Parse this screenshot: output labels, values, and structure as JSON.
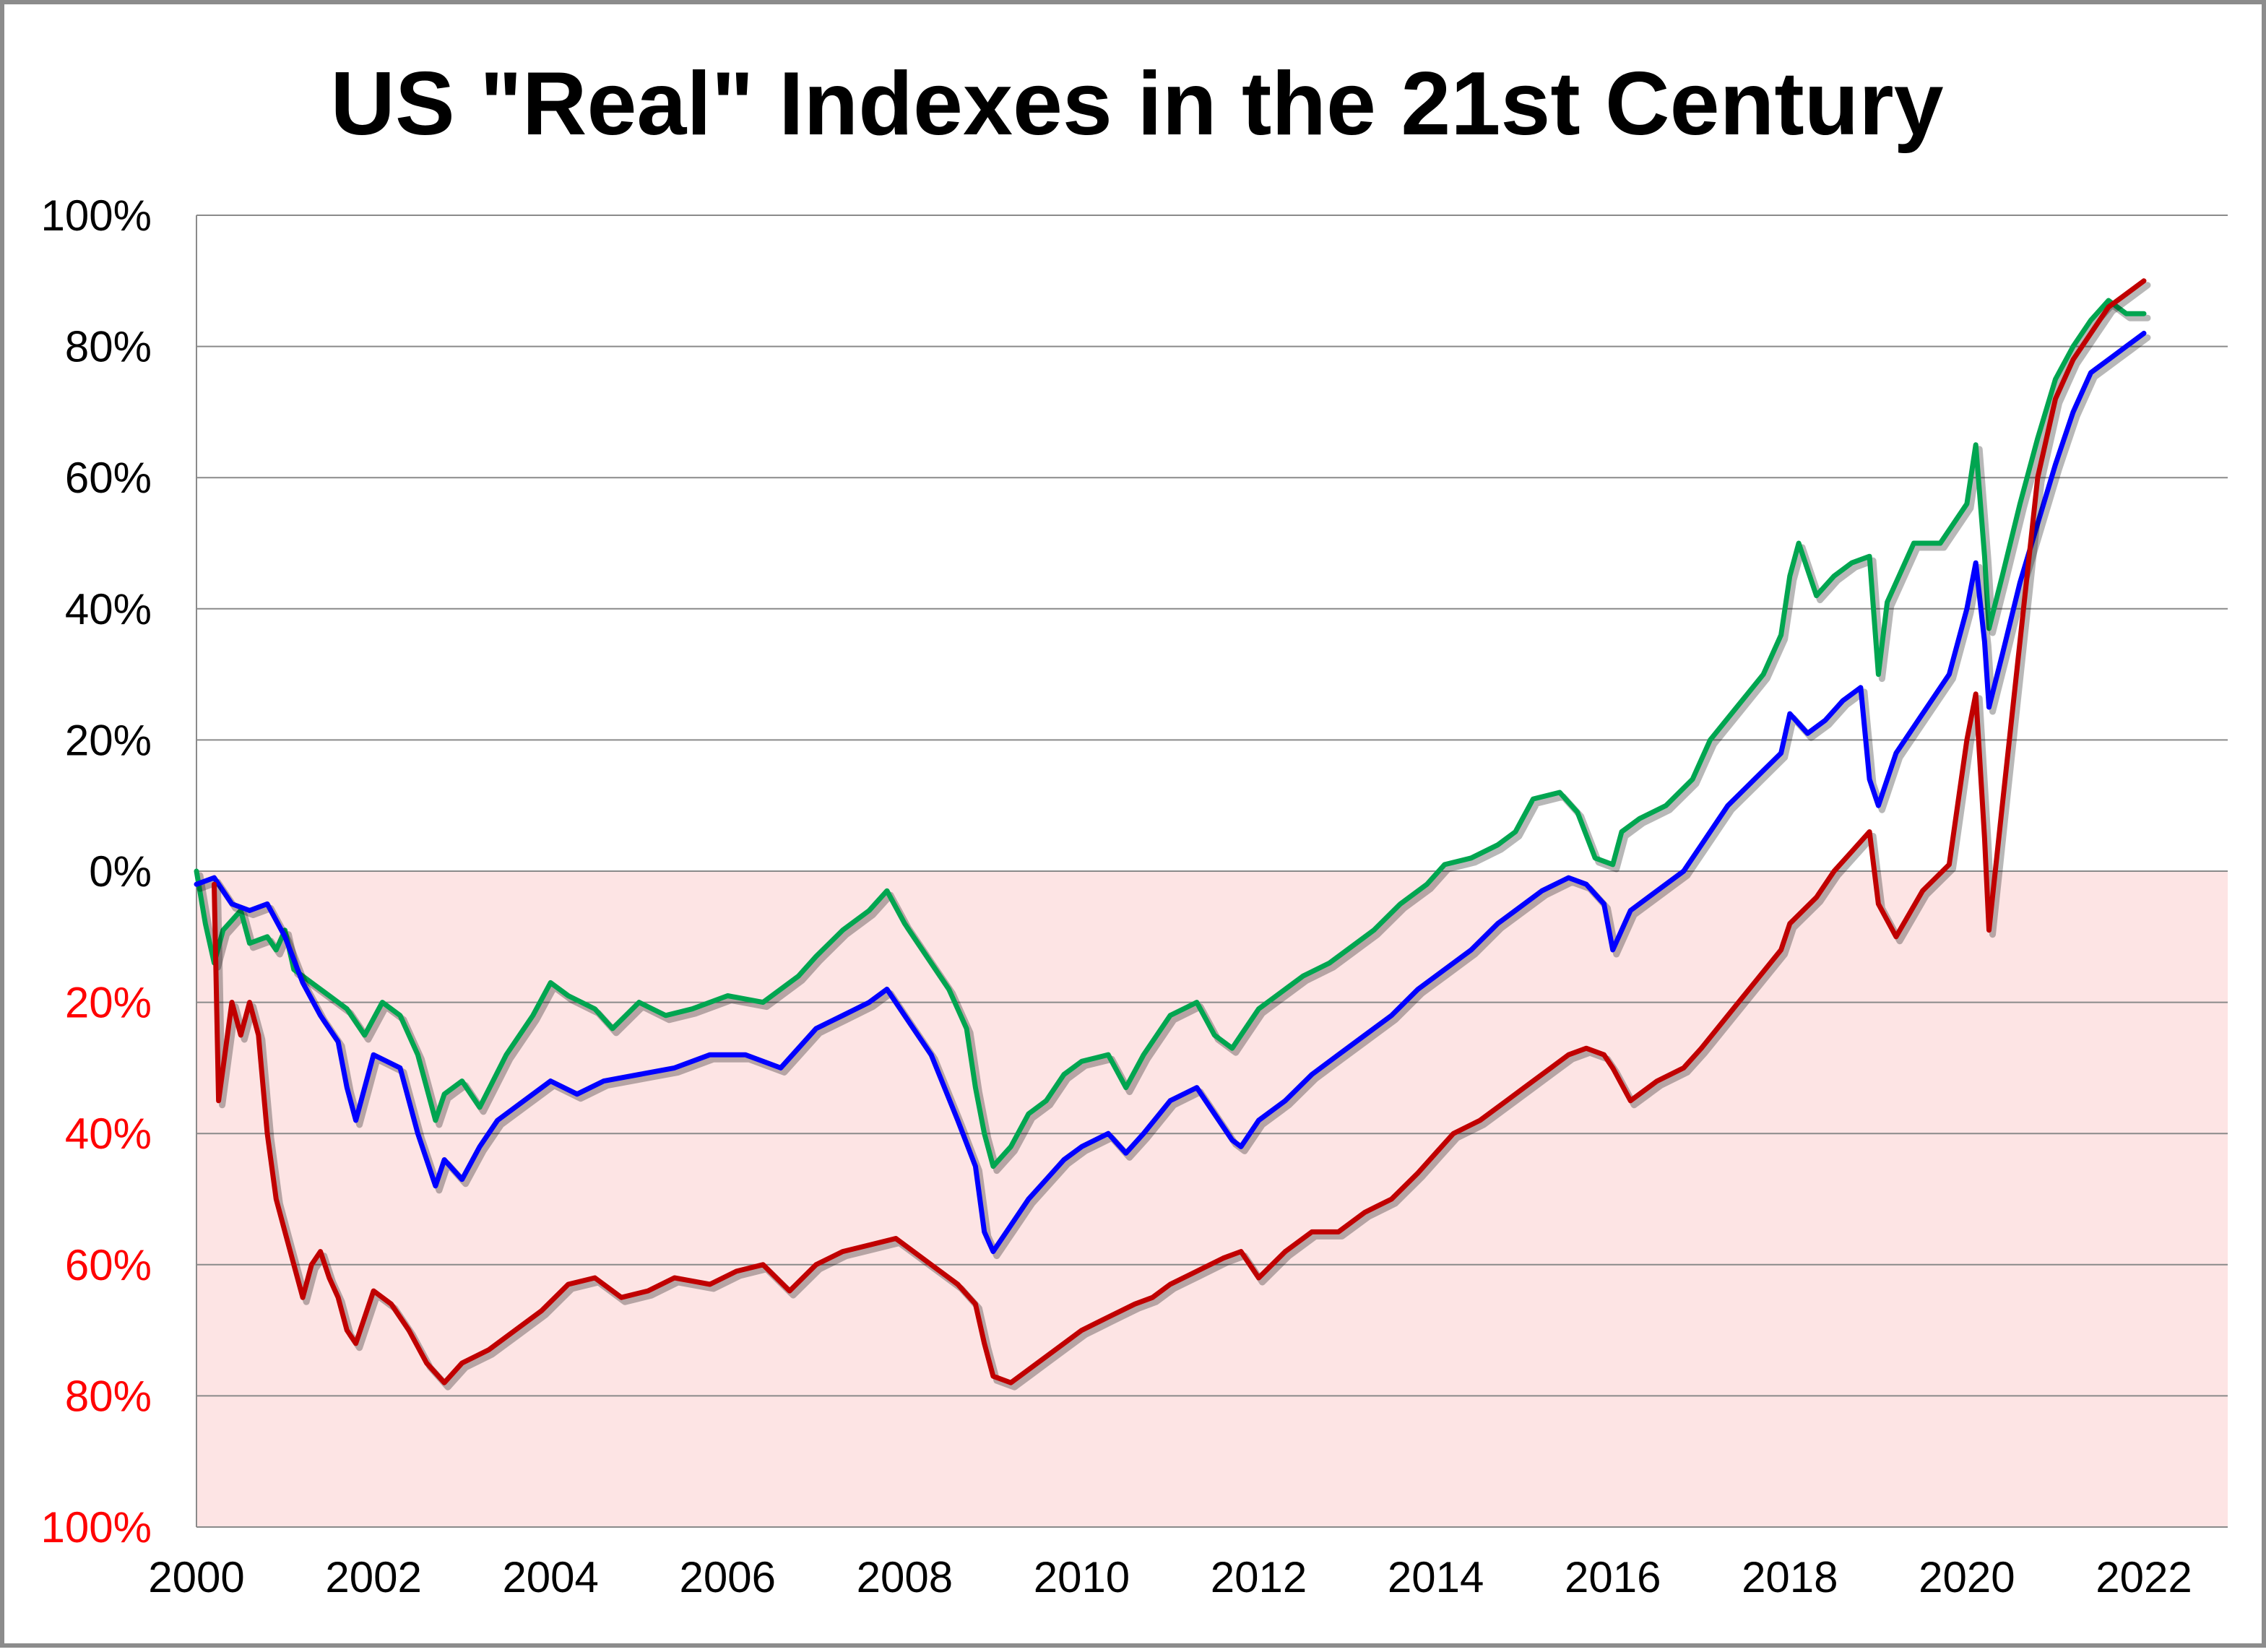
{
  "chart_data": {
    "type": "line",
    "title": "US \"Real\" Indexes in the 21st Century",
    "xlabel": "",
    "ylabel": "",
    "xlim": [
      2000,
      2023
    ],
    "ylim": [
      -100,
      100
    ],
    "grid": true,
    "legend": "none",
    "x_ticks": [
      "2000",
      "2002",
      "2004",
      "2006",
      "2008",
      "2010",
      "2012",
      "2014",
      "2016",
      "2018",
      "2020",
      "2022"
    ],
    "y_ticks": [
      {
        "value": 100,
        "label": "100%",
        "color": "#000000"
      },
      {
        "value": 80,
        "label": "80%",
        "color": "#000000"
      },
      {
        "value": 60,
        "label": "60%",
        "color": "#000000"
      },
      {
        "value": 40,
        "label": "40%",
        "color": "#000000"
      },
      {
        "value": 20,
        "label": "20%",
        "color": "#000000"
      },
      {
        "value": 0,
        "label": "0%",
        "color": "#000000"
      },
      {
        "value": -20,
        "label": "20%",
        "color": "#ff0000"
      },
      {
        "value": -40,
        "label": "40%",
        "color": "#ff0000"
      },
      {
        "value": -60,
        "label": "60%",
        "color": "#ff0000"
      },
      {
        "value": -80,
        "label": "80%",
        "color": "#ff0000"
      },
      {
        "value": -100,
        "label": "100%",
        "color": "#ff0000"
      }
    ],
    "negative_region_color": "#fde4e4",
    "series": [
      {
        "color": "#00a550",
        "x": [
          2000.0,
          2000.1,
          2000.2,
          2000.3,
          2000.5,
          2000.6,
          2000.8,
          2000.9,
          2001.0,
          2001.1,
          2001.3,
          2001.5,
          2001.7,
          2001.9,
          2002.1,
          2002.3,
          2002.5,
          2002.7,
          2002.8,
          2003.0,
          2003.2,
          2003.5,
          2003.8,
          2004.0,
          2004.2,
          2004.5,
          2004.7,
          2005.0,
          2005.3,
          2005.6,
          2006.0,
          2006.4,
          2006.8,
          2007.0,
          2007.3,
          2007.6,
          2007.8,
          2008.0,
          2008.3,
          2008.5,
          2008.7,
          2008.8,
          2008.9,
          2009.0,
          2009.2,
          2009.4,
          2009.6,
          2009.8,
          2010.0,
          2010.3,
          2010.5,
          2010.7,
          2011.0,
          2011.3,
          2011.5,
          2011.7,
          2011.8,
          2012.0,
          2012.3,
          2012.5,
          2012.8,
          2013.0,
          2013.3,
          2013.6,
          2013.9,
          2014.1,
          2014.4,
          2014.7,
          2014.9,
          2015.1,
          2015.4,
          2015.6,
          2015.8,
          2016.0,
          2016.1,
          2016.3,
          2016.6,
          2016.9,
          2017.1,
          2017.4,
          2017.7,
          2017.9,
          2018.0,
          2018.1,
          2018.3,
          2018.5,
          2018.7,
          2018.9,
          2019.0,
          2019.1,
          2019.4,
          2019.7,
          2020.0,
          2020.1,
          2020.2,
          2020.25,
          2020.4,
          2020.6,
          2020.8,
          2021.0,
          2021.2,
          2021.4,
          2021.6,
          2021.8,
          2022.0
        ],
        "y": [
          0,
          -8,
          -14,
          -9,
          -6,
          -11,
          -10,
          -12,
          -9,
          -15,
          -17,
          -19,
          -21,
          -25,
          -20,
          -22,
          -28,
          -38,
          -34,
          -32,
          -36,
          -28,
          -22,
          -17,
          -19,
          -21,
          -24,
          -20,
          -22,
          -21,
          -19,
          -20,
          -16,
          -13,
          -9,
          -6,
          -3,
          -8,
          -14,
          -18,
          -24,
          -33,
          -40,
          -45,
          -42,
          -37,
          -35,
          -31,
          -29,
          -28,
          -33,
          -28,
          -22,
          -20,
          -25,
          -27,
          -25,
          -21,
          -18,
          -16,
          -14,
          -12,
          -9,
          -5,
          -2,
          1,
          2,
          4,
          6,
          11,
          12,
          9,
          2,
          1,
          6,
          8,
          10,
          14,
          20,
          25,
          30,
          36,
          45,
          50,
          42,
          45,
          47,
          48,
          30,
          41,
          50,
          50,
          56,
          65,
          48,
          37,
          45,
          56,
          66,
          75,
          80,
          84,
          87,
          85,
          85
        ]
      },
      {
        "color": "#0000ff",
        "x": [
          2000.0,
          2000.2,
          2000.4,
          2000.6,
          2000.8,
          2001.0,
          2001.2,
          2001.4,
          2001.6,
          2001.7,
          2001.8,
          2002.0,
          2002.3,
          2002.5,
          2002.7,
          2002.8,
          2003.0,
          2003.2,
          2003.4,
          2003.7,
          2004.0,
          2004.3,
          2004.6,
          2005.0,
          2005.4,
          2005.8,
          2006.2,
          2006.6,
          2007.0,
          2007.3,
          2007.6,
          2007.8,
          2008.0,
          2008.3,
          2008.6,
          2008.8,
          2008.9,
          2009.0,
          2009.2,
          2009.4,
          2009.6,
          2009.8,
          2010.0,
          2010.3,
          2010.5,
          2010.7,
          2011.0,
          2011.3,
          2011.5,
          2011.7,
          2011.8,
          2012.0,
          2012.3,
          2012.6,
          2012.9,
          2013.2,
          2013.5,
          2013.8,
          2014.1,
          2014.4,
          2014.7,
          2014.9,
          2015.2,
          2015.5,
          2015.7,
          2015.9,
          2016.0,
          2016.2,
          2016.5,
          2016.8,
          2017.0,
          2017.3,
          2017.6,
          2017.9,
          2018.0,
          2018.2,
          2018.4,
          2018.6,
          2018.8,
          2018.9,
          2019.0,
          2019.2,
          2019.5,
          2019.8,
          2020.0,
          2020.1,
          2020.2,
          2020.25,
          2020.4,
          2020.6,
          2020.8,
          2021.0,
          2021.2,
          2021.4,
          2021.6,
          2021.8,
          2022.0
        ],
        "y": [
          -2,
          -1,
          -5,
          -6,
          -5,
          -10,
          -17,
          -22,
          -26,
          -33,
          -38,
          -28,
          -30,
          -40,
          -48,
          -44,
          -47,
          -42,
          -38,
          -35,
          -32,
          -34,
          -32,
          -31,
          -30,
          -28,
          -28,
          -30,
          -24,
          -22,
          -20,
          -18,
          -22,
          -28,
          -38,
          -45,
          -55,
          -58,
          -54,
          -50,
          -47,
          -44,
          -42,
          -40,
          -43,
          -40,
          -35,
          -33,
          -37,
          -41,
          -42,
          -38,
          -35,
          -31,
          -28,
          -25,
          -22,
          -18,
          -15,
          -12,
          -8,
          -6,
          -3,
          -1,
          -2,
          -5,
          -12,
          -6,
          -3,
          0,
          4,
          10,
          14,
          18,
          24,
          21,
          23,
          26,
          28,
          14,
          10,
          18,
          24,
          30,
          40,
          47,
          35,
          25,
          33,
          44,
          53,
          62,
          70,
          76,
          78,
          80,
          82
        ]
      },
      {
        "color": "#c00000",
        "x": [
          2000.2,
          2000.25,
          2000.3,
          2000.35,
          2000.4,
          2000.5,
          2000.6,
          2000.7,
          2000.8,
          2000.9,
          2001.0,
          2001.1,
          2001.2,
          2001.3,
          2001.4,
          2001.5,
          2001.6,
          2001.7,
          2001.8,
          2002.0,
          2002.2,
          2002.4,
          2002.6,
          2002.8,
          2003.0,
          2003.3,
          2003.6,
          2003.9,
          2004.2,
          2004.5,
          2004.8,
          2005.1,
          2005.4,
          2005.8,
          2006.1,
          2006.4,
          2006.7,
          2007.0,
          2007.3,
          2007.6,
          2007.9,
          2008.0,
          2008.3,
          2008.6,
          2008.8,
          2008.9,
          2009.0,
          2009.2,
          2009.4,
          2009.6,
          2009.8,
          2010.0,
          2010.3,
          2010.6,
          2010.8,
          2011.0,
          2011.3,
          2011.6,
          2011.8,
          2012.0,
          2012.3,
          2012.6,
          2012.9,
          2013.2,
          2013.5,
          2013.8,
          2014.0,
          2014.2,
          2014.5,
          2014.8,
          2015.0,
          2015.3,
          2015.5,
          2015.7,
          2015.9,
          2016.0,
          2016.2,
          2016.5,
          2016.8,
          2017.0,
          2017.3,
          2017.6,
          2017.9,
          2018.0,
          2018.3,
          2018.5,
          2018.7,
          2018.9,
          2019.0,
          2019.2,
          2019.5,
          2019.8,
          2020.0,
          2020.1,
          2020.2,
          2020.25,
          2020.4,
          2020.6,
          2020.8,
          2021.0,
          2021.2,
          2021.4,
          2021.6,
          2021.8,
          2022.0
        ],
        "y": [
          -2,
          -35,
          -30,
          -25,
          -20,
          -25,
          -20,
          -25,
          -40,
          -50,
          -55,
          -60,
          -65,
          -60,
          -58,
          -62,
          -65,
          -70,
          -72,
          -64,
          -66,
          -70,
          -75,
          -78,
          -75,
          -73,
          -70,
          -67,
          -63,
          -62,
          -65,
          -64,
          -62,
          -63,
          -61,
          -60,
          -64,
          -60,
          -58,
          -57,
          -56,
          -57,
          -60,
          -63,
          -66,
          -72,
          -77,
          -78,
          -76,
          -74,
          -72,
          -70,
          -68,
          -66,
          -65,
          -63,
          -61,
          -59,
          -58,
          -62,
          -58,
          -55,
          -55,
          -52,
          -50,
          -46,
          -43,
          -40,
          -38,
          -35,
          -33,
          -30,
          -28,
          -27,
          -28,
          -30,
          -35,
          -32,
          -30,
          -27,
          -22,
          -17,
          -12,
          -8,
          -4,
          0,
          3,
          6,
          -5,
          -10,
          -3,
          1,
          20,
          27,
          5,
          -9,
          10,
          35,
          60,
          72,
          78,
          82,
          86,
          88,
          90
        ]
      }
    ]
  }
}
